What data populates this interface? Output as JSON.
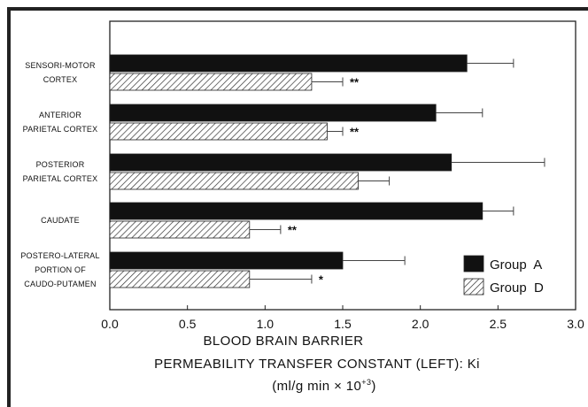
{
  "chart_data": {
    "type": "bar",
    "orientation": "horizontal",
    "categories": [
      [
        "SENSORI-MOTOR",
        "CORTEX"
      ],
      [
        "ANTERIOR",
        "PARIETAL CORTEX"
      ],
      [
        "POSTERIOR",
        "PARIETAL CORTEX"
      ],
      [
        "CAUDATE"
      ],
      [
        "POSTERO-LATERAL",
        "PORTION OF",
        "CAUDO-PUTAMEN"
      ]
    ],
    "series": [
      {
        "name": "Group  A",
        "values": [
          2.3,
          2.1,
          2.2,
          2.4,
          1.5
        ],
        "errors": [
          0.3,
          0.3,
          0.6,
          0.2,
          0.4
        ],
        "significance": [
          "",
          "",
          "",
          "",
          ""
        ],
        "color": "#111111",
        "pattern": "solid"
      },
      {
        "name": "Group  D",
        "values": [
          1.3,
          1.4,
          1.6,
          0.9,
          0.9
        ],
        "errors": [
          0.2,
          0.1,
          0.2,
          0.2,
          0.4
        ],
        "significance": [
          "**",
          "**",
          "",
          "**",
          "*"
        ],
        "color": "#333333",
        "pattern": "hatched"
      }
    ],
    "xlim": [
      0,
      3.0
    ],
    "xticks": [
      "0.0",
      "0.5",
      "1.0",
      "1.5",
      "2.0",
      "2.5",
      "3.0"
    ],
    "xlabel_lines": [
      "BLOOD  BRAIN  BARRIER",
      "PERMEABILITY  TRANSFER  CONSTANT  (LEFT):  Ki"
    ],
    "xlabel_unit": "(ml/g  min  ×  10",
    "xlabel_unit_exp": "+3",
    "xlabel_unit_close": ")",
    "legend_position": "bottom-right",
    "grid": false
  }
}
